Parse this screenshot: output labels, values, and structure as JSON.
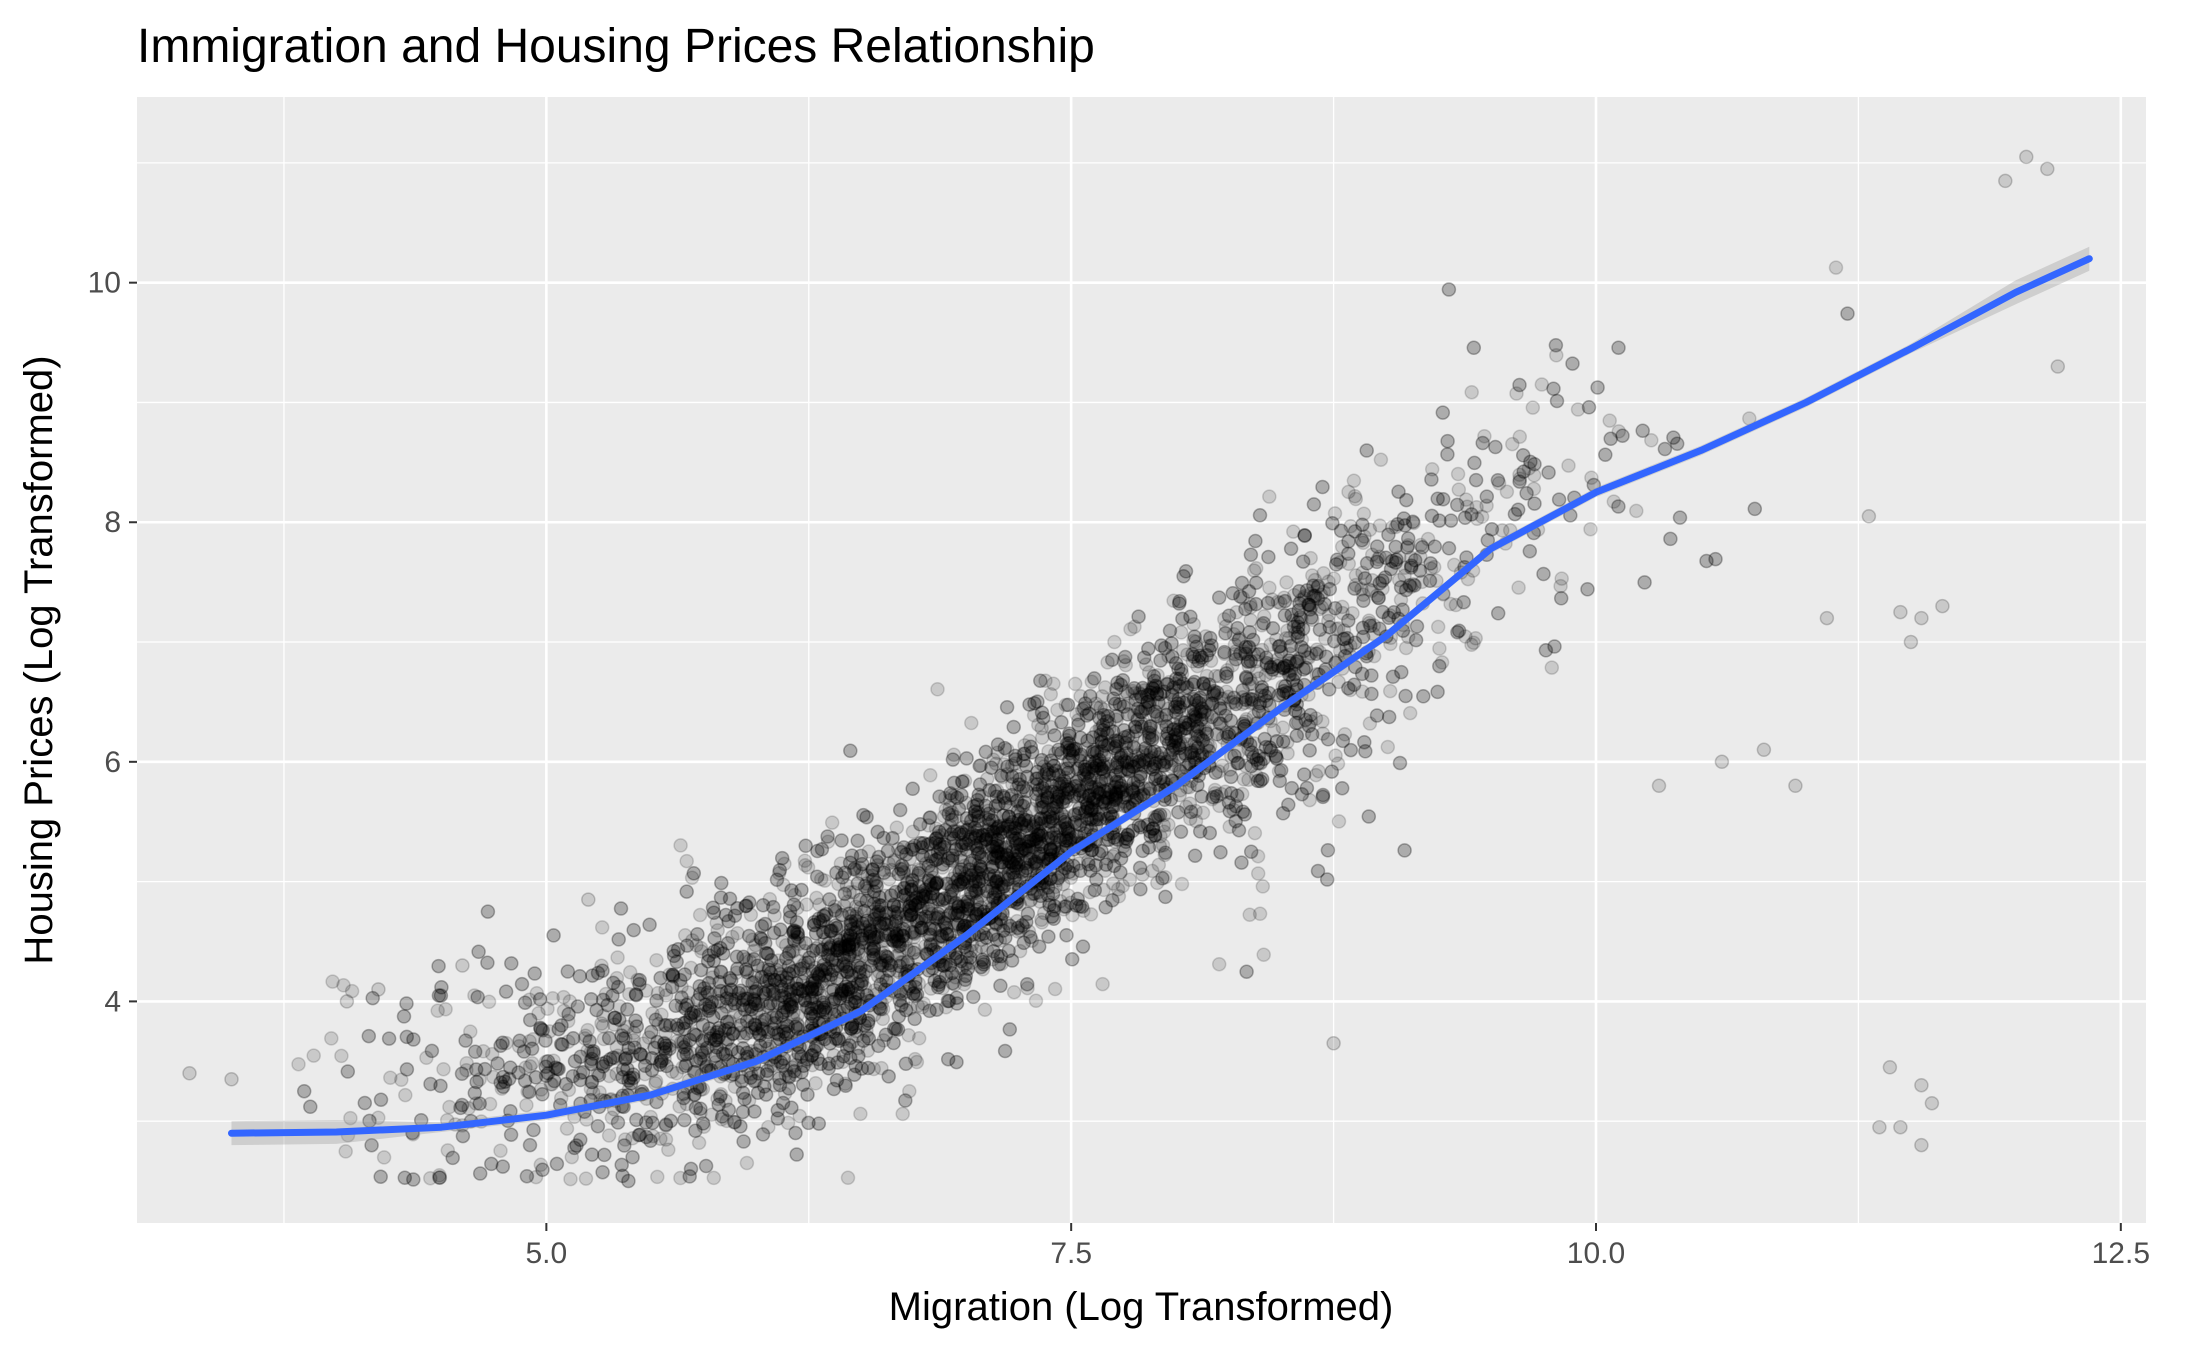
{
  "chart_data": {
    "type": "scatter",
    "title": "Immigration and Housing Prices Relationship",
    "xlabel": "Migration (Log Transformed)",
    "ylabel": "Housing Prices (Log Transformed)",
    "xlim": [
      3.05,
      12.62
    ],
    "ylim": [
      2.15,
      11.55
    ],
    "x_ticks": [
      5.0,
      7.5,
      10.0,
      12.5
    ],
    "x_tick_labels": [
      "5.0",
      "7.5",
      "10.0",
      "12.5"
    ],
    "y_ticks": [
      4,
      6,
      8,
      10
    ],
    "y_tick_labels": [
      "4",
      "6",
      "8",
      "10"
    ],
    "grid": true,
    "legend": "none",
    "colors": {
      "panel": "#ebebeb",
      "grid": "#ffffff",
      "points": "#000000",
      "smooth": "#3366ff",
      "ribbon": "#999999"
    },
    "point_cloud": {
      "description_of_source": "thousands of semi-transparent black points",
      "approximate_count": 6000
    },
    "smooth_line": {
      "x": [
        3.5,
        4.0,
        4.5,
        5.0,
        5.5,
        6.0,
        6.5,
        7.0,
        7.5,
        8.0,
        8.5,
        9.0,
        9.5,
        10.0,
        10.5,
        11.0,
        11.5,
        12.0,
        12.35
      ],
      "y": [
        2.9,
        2.91,
        2.95,
        3.05,
        3.22,
        3.5,
        3.92,
        4.55,
        5.25,
        5.8,
        6.45,
        7.05,
        7.78,
        8.25,
        8.6,
        9.0,
        9.45,
        9.92,
        10.2
      ]
    },
    "outliers": [
      {
        "x": 11.4,
        "y": 3.45
      },
      {
        "x": 11.55,
        "y": 3.3
      },
      {
        "x": 11.6,
        "y": 3.15
      },
      {
        "x": 11.35,
        "y": 2.95
      },
      {
        "x": 11.45,
        "y": 2.95
      },
      {
        "x": 11.55,
        "y": 2.8
      },
      {
        "x": 11.3,
        "y": 8.05
      },
      {
        "x": 11.45,
        "y": 7.25
      },
      {
        "x": 11.55,
        "y": 7.2
      },
      {
        "x": 11.65,
        "y": 7.3
      },
      {
        "x": 11.5,
        "y": 7.0
      },
      {
        "x": 11.1,
        "y": 7.2
      },
      {
        "x": 10.95,
        "y": 5.8
      },
      {
        "x": 10.6,
        "y": 6.0
      },
      {
        "x": 10.3,
        "y": 5.8
      },
      {
        "x": 10.8,
        "y": 6.1
      },
      {
        "x": 12.2,
        "y": 9.3
      },
      {
        "x": 12.15,
        "y": 10.95
      },
      {
        "x": 12.05,
        "y": 11.05
      },
      {
        "x": 11.95,
        "y": 10.85
      },
      {
        "x": 4.05,
        "y": 4.0
      },
      {
        "x": 4.2,
        "y": 4.1
      },
      {
        "x": 4.6,
        "y": 4.3
      },
      {
        "x": 5.2,
        "y": 4.85
      },
      {
        "x": 3.5,
        "y": 3.35
      },
      {
        "x": 3.3,
        "y": 3.4
      },
      {
        "x": 8.75,
        "y": 3.65
      }
    ]
  }
}
